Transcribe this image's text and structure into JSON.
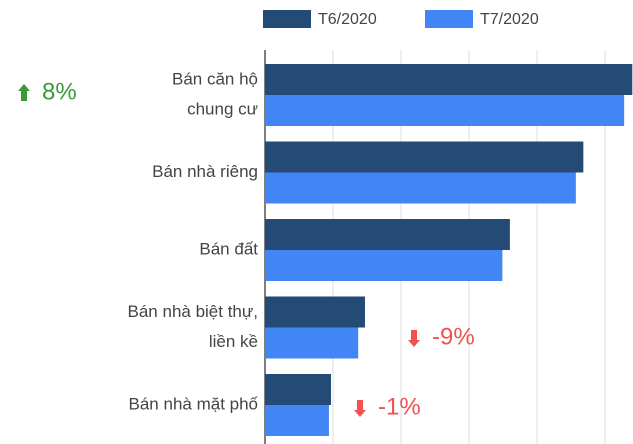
{
  "chart_data": {
    "type": "bar",
    "orientation": "horizontal",
    "categories": [
      [
        "Bán căn hộ",
        "chung cư"
      ],
      [
        "Bán nhà riêng"
      ],
      [
        "Bán đất"
      ],
      [
        "Bán nhà biệt thự,",
        "liền kề"
      ],
      [
        "Bán nhà mặt phố"
      ]
    ],
    "series": [
      {
        "name": "T6/2020",
        "color": "#234b75",
        "values": [
          5.4,
          4.68,
          3.6,
          1.47,
          0.97
        ]
      },
      {
        "name": "T7/2020",
        "color": "#4285f4",
        "values": [
          5.28,
          4.57,
          3.49,
          1.37,
          0.94
        ]
      }
    ],
    "xlim": [
      0,
      5.41
    ],
    "xticks": [
      0,
      1,
      2,
      3,
      4,
      5
    ],
    "grid": true,
    "annotations": [
      {
        "text": "8%",
        "color": "#3a9a3a"
      },
      {
        "text": "-9%",
        "color": "#f0524f"
      },
      {
        "text": "-1%",
        "color": "#f0524f"
      }
    ]
  }
}
